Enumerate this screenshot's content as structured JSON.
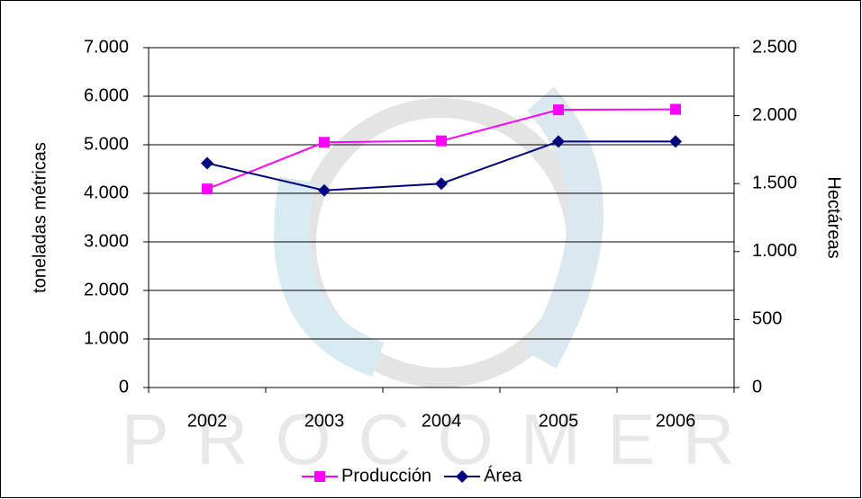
{
  "chart_data": {
    "type": "line",
    "categories": [
      "2002",
      "2003",
      "2004",
      "2005",
      "2006"
    ],
    "series": [
      {
        "name": "Producción",
        "color": "#ff00ff",
        "marker": "square",
        "values": [
          4090,
          5050,
          5080,
          5720,
          5730
        ]
      },
      {
        "name": "Área",
        "color": "#000080",
        "marker": "diamond",
        "axis": "y2",
        "values": [
          1650,
          1450,
          1500,
          1810,
          1810
        ]
      }
    ],
    "ylabel": "toneladas métricas",
    "y2label": "Hectáreas",
    "ylim": [
      0,
      7000
    ],
    "yticks": [
      0,
      {
        "value": 1000,
        "label": "1.000"
      },
      {
        "value": 2000,
        "label": "2.000"
      },
      {
        "value": 3000,
        "label": "3.000"
      },
      {
        "value": 4000,
        "label": "4.000"
      },
      {
        "value": 5000,
        "label": "5.000"
      },
      {
        "value": 6000,
        "label": "6.000"
      },
      {
        "value": 7000,
        "label": "7.000"
      }
    ],
    "y2lim": [
      0,
      2500
    ],
    "y2ticks": [
      0,
      500,
      {
        "value": 1000,
        "label": "1.000"
      },
      {
        "value": 1500,
        "label": "1.500"
      },
      {
        "value": 2000,
        "label": "2.000"
      },
      {
        "value": 2500,
        "label": "2.500"
      }
    ],
    "grid": true,
    "legend": "bottom",
    "watermark": "PROCOMER"
  }
}
